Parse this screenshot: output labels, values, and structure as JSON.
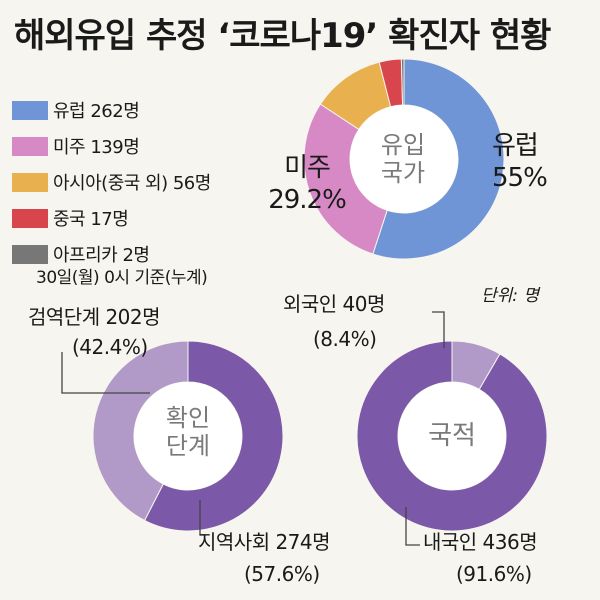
{
  "title": "해외유입 추정 ‘코로나19’ 확진자 현황",
  "unit_note": "단위: 명",
  "legend": {
    "items": [
      {
        "label": "유럽 262명",
        "color": "#6f95d6"
      },
      {
        "label": "미주 139명",
        "color": "#d689c4"
      },
      {
        "label": "아시아(중국 외) 56명",
        "color": "#e8b04f"
      },
      {
        "label": "중국 17명",
        "color": "#d9454c"
      },
      {
        "label": "아프리카 2명",
        "color": "#777777"
      }
    ],
    "note": "30일(월) 0시 기준(누계)"
  },
  "charts": {
    "region": {
      "center_line1": "유입",
      "center_line2": "국가",
      "europe_name": "유럽",
      "europe_pct": "55%",
      "americas_name": "미주",
      "americas_pct": "29.2%"
    },
    "stage": {
      "center_line1": "확인",
      "center_line2": "단계",
      "quarantine_label": "검역단계 202명",
      "quarantine_pct": "(42.4%)",
      "community_label": "지역사회 274명",
      "community_pct": "(57.6%)"
    },
    "nationality": {
      "center_line1": "국적",
      "foreign_label": "외국인 40명",
      "foreign_pct": "(8.4%)",
      "korean_label": "내국인 436명",
      "korean_pct": "(91.6%)"
    }
  },
  "chart_data": [
    {
      "type": "pie",
      "donut": true,
      "center_text": "유입 국가",
      "categories": [
        "유럽",
        "미주",
        "아시아(중국 외)",
        "중국",
        "아프리카"
      ],
      "values": [
        262,
        139,
        56,
        17,
        2
      ],
      "colors": [
        "#6f95d6",
        "#d689c4",
        "#e8b04f",
        "#d9454c",
        "#777777"
      ],
      "unit": "명"
    },
    {
      "type": "pie",
      "donut": true,
      "center_text": "확인 단계",
      "categories": [
        "지역사회",
        "검역단계"
      ],
      "values": [
        274,
        202
      ],
      "percents": [
        57.6,
        42.4
      ],
      "colors": [
        "#7b58a8",
        "#b29ac8"
      ],
      "unit": "명"
    },
    {
      "type": "pie",
      "donut": true,
      "center_text": "국적",
      "categories": [
        "내국인",
        "외국인"
      ],
      "values": [
        436,
        40
      ],
      "percents": [
        91.6,
        8.4
      ],
      "colors": [
        "#7b58a8",
        "#b29ac8"
      ],
      "unit": "명"
    }
  ]
}
